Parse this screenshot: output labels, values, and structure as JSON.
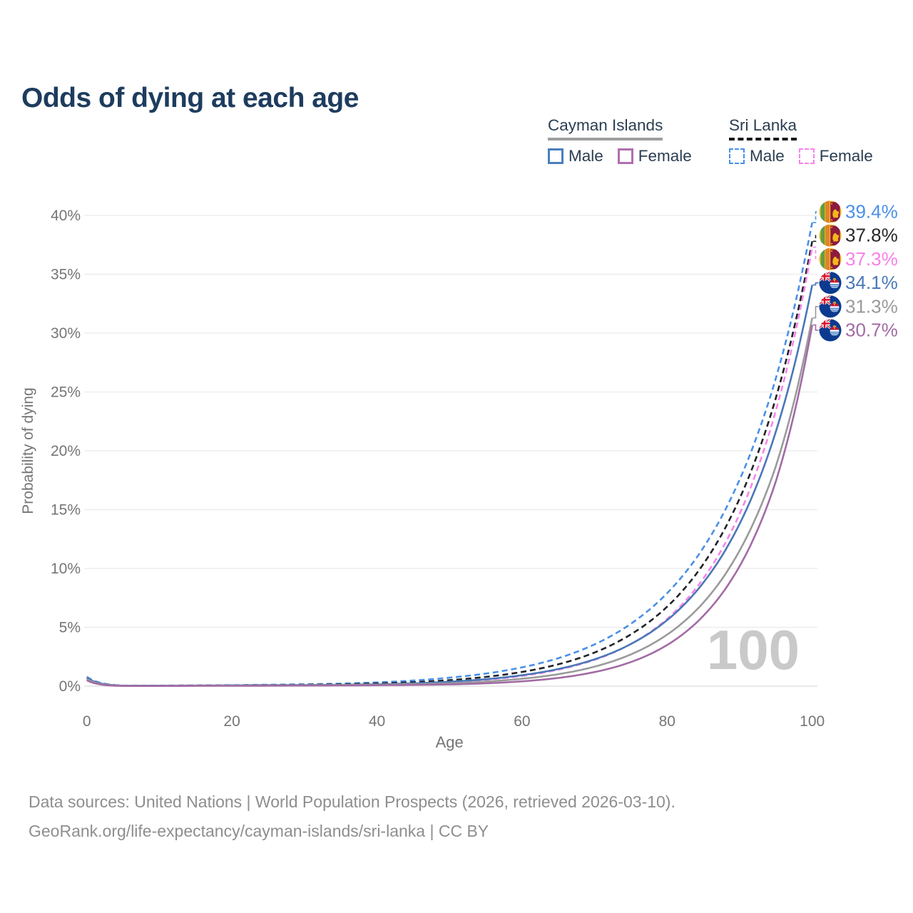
{
  "title": "Odds of dying at each age",
  "legend": {
    "groups": [
      {
        "name": "Cayman Islands",
        "underline_style": "solid",
        "underline_color": "#9e9e9e",
        "items": [
          {
            "label": "Male",
            "color": "#4a7ebd",
            "dash": false
          },
          {
            "label": "Female",
            "color": "#b06fae",
            "dash": false
          }
        ]
      },
      {
        "name": "Sri Lanka",
        "underline_style": "dashed",
        "underline_color": "#1a1a1a",
        "items": [
          {
            "label": "Male",
            "color": "#4a90e8",
            "dash": true
          },
          {
            "label": "Female",
            "color": "#f884ea",
            "dash": true
          }
        ]
      }
    ]
  },
  "chart_data": {
    "type": "line",
    "title": "Odds of dying at each age",
    "xlabel": "Age",
    "ylabel": "Probability of dying",
    "xlim": [
      0,
      100
    ],
    "ylim": [
      0,
      40
    ],
    "x_ticks": [
      0,
      20,
      40,
      60,
      80,
      100
    ],
    "y_ticks": [
      "0%",
      "5%",
      "10%",
      "15%",
      "20%",
      "25%",
      "30%",
      "35%",
      "40%"
    ],
    "grid": "horizontal",
    "watermark": "100",
    "legend_position": "top-right",
    "ages": [
      0,
      5,
      10,
      15,
      20,
      25,
      30,
      35,
      40,
      45,
      50,
      55,
      60,
      65,
      70,
      75,
      80,
      85,
      90,
      95,
      100
    ],
    "series": [
      {
        "name": "Sri Lanka Male",
        "country": "Sri Lanka",
        "group": "Male",
        "color": "#4a90e8",
        "dashed": true,
        "flag": "sri-lanka",
        "end_label": "39.4%",
        "label_color": "#4a90e8",
        "values": [
          0.8,
          0.05,
          0.05,
          0.06,
          0.09,
          0.12,
          0.16,
          0.22,
          0.32,
          0.48,
          0.72,
          1.07,
          1.6,
          2.38,
          3.55,
          5.3,
          7.9,
          11.77,
          17.56,
          26.18,
          39.4
        ]
      },
      {
        "name": "Sri Lanka Overall",
        "country": "Sri Lanka",
        "group": "Overall",
        "color": "#222427",
        "dashed": true,
        "flag": "sri-lanka",
        "end_label": "37.8%",
        "label_color": "#26282a",
        "values": [
          0.7,
          0.04,
          0.04,
          0.05,
          0.07,
          0.09,
          0.12,
          0.16,
          0.23,
          0.34,
          0.51,
          0.79,
          1.21,
          1.86,
          2.86,
          4.4,
          6.75,
          10.38,
          15.95,
          24.51,
          37.8
        ]
      },
      {
        "name": "Sri Lanka Female",
        "country": "Sri Lanka",
        "group": "Female",
        "color": "#f884ea",
        "dashed": true,
        "flag": "sri-lanka",
        "end_label": "37.3%",
        "label_color": "#f780e8",
        "values": [
          0.6,
          0.03,
          0.03,
          0.04,
          0.05,
          0.06,
          0.08,
          0.1,
          0.14,
          0.22,
          0.34,
          0.55,
          0.87,
          1.4,
          2.24,
          3.58,
          5.72,
          9.16,
          14.65,
          23.44,
          37.3
        ]
      },
      {
        "name": "Cayman Islands Male",
        "country": "Cayman Islands",
        "group": "Male",
        "color": "#4a77b7",
        "dashed": false,
        "flag": "cayman",
        "end_label": "34.1%",
        "label_color": "#4a78b8",
        "values": [
          0.7,
          0.04,
          0.04,
          0.05,
          0.07,
          0.09,
          0.1,
          0.12,
          0.16,
          0.24,
          0.38,
          0.59,
          0.93,
          1.46,
          2.28,
          3.58,
          5.61,
          8.8,
          13.8,
          21.65,
          34.1
        ]
      },
      {
        "name": "Cayman Islands Overall",
        "country": "Cayman Islands",
        "group": "Overall",
        "color": "#9b9b9b",
        "dashed": false,
        "flag": "cayman",
        "end_label": "31.3%",
        "label_color": "#9a9a9a",
        "values": [
          0.6,
          0.03,
          0.03,
          0.04,
          0.05,
          0.06,
          0.08,
          0.1,
          0.12,
          0.17,
          0.24,
          0.39,
          0.63,
          1.02,
          1.66,
          2.7,
          4.38,
          7.1,
          11.53,
          18.71,
          31.3
        ]
      },
      {
        "name": "Cayman Islands Female",
        "country": "Cayman Islands",
        "group": "Female",
        "color": "#a26ba4",
        "dashed": false,
        "flag": "cayman",
        "end_label": "30.7%",
        "label_color": "#a16ba3",
        "values": [
          0.5,
          0.02,
          0.02,
          0.03,
          0.03,
          0.04,
          0.05,
          0.06,
          0.08,
          0.11,
          0.15,
          0.24,
          0.41,
          0.7,
          1.2,
          2.05,
          3.5,
          5.98,
          10.2,
          17.42,
          30.7
        ]
      }
    ]
  },
  "footer": {
    "line1": "Data sources: United Nations | World Population Prospects (2026, retrieved 2026-03-10).",
    "line2": "GeoRank.org/life-expectancy/cayman-islands/sri-lanka | CC BY"
  }
}
